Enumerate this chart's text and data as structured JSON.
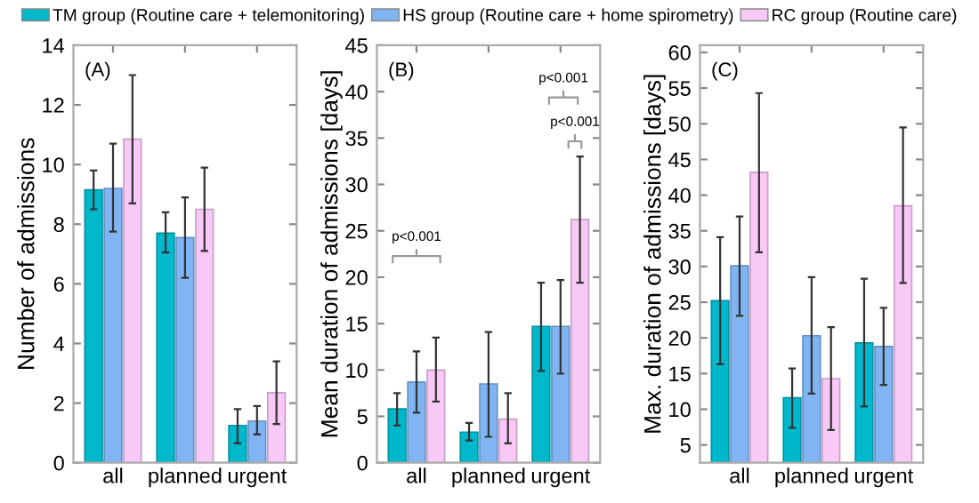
{
  "chart_data": [
    {
      "type": "bar",
      "ylabel": "Number of admissions",
      "categories": [
        "all",
        "planned",
        "urgent"
      ],
      "ylim": [
        0,
        14
      ],
      "yticks": [
        0,
        2,
        4,
        6,
        8,
        10,
        12,
        14
      ],
      "legend": "top",
      "grid": false,
      "annotations": [
        "(A)"
      ],
      "series": [
        {
          "name": "TM group (Routine care + telemonitoring)",
          "color": "#00b8cc",
          "values": [
            9.15,
            7.7,
            1.25
          ],
          "errors": [
            [
              8.5,
              9.8
            ],
            [
              7.05,
              8.4
            ],
            [
              0.65,
              1.8
            ]
          ]
        },
        {
          "name": "HS group (Routine care + home spirometry)",
          "color": "#80b4f2",
          "values": [
            9.2,
            7.55,
            1.4
          ],
          "errors": [
            [
              7.75,
              10.7
            ],
            [
              6.2,
              8.9
            ],
            [
              0.95,
              1.9
            ]
          ]
        },
        {
          "name": "RC group (Routine care)",
          "color": "#f8c8f6",
          "values": [
            10.85,
            8.5,
            2.35
          ],
          "errors": [
            [
              8.7,
              13.0
            ],
            [
              7.1,
              9.9
            ],
            [
              1.3,
              3.4
            ]
          ]
        }
      ]
    },
    {
      "type": "bar",
      "ylabel": "Mean duration of admissions [days]",
      "categories": [
        "all",
        "planned",
        "urgent"
      ],
      "ylim": [
        0,
        45
      ],
      "yticks": [
        0,
        5,
        10,
        15,
        20,
        25,
        30,
        35,
        40,
        45
      ],
      "grid": false,
      "annotations": [
        "(B)",
        "p<0.001",
        "p<0.001",
        "p<0.001"
      ],
      "series": [
        {
          "color": "#00b8cc",
          "values": [
            5.8,
            3.3,
            14.7
          ],
          "errors": [
            [
              4.0,
              7.5
            ],
            [
              2.4,
              4.3
            ],
            [
              9.9,
              19.4
            ]
          ]
        },
        {
          "color": "#80b4f2",
          "values": [
            8.7,
            8.5,
            14.7
          ],
          "errors": [
            [
              5.4,
              12.0
            ],
            [
              2.8,
              14.1
            ],
            [
              9.6,
              19.7
            ]
          ]
        },
        {
          "color": "#f8c8f6",
          "values": [
            10.0,
            4.7,
            26.2
          ],
          "errors": [
            [
              6.6,
              13.5
            ],
            [
              2.1,
              7.5
            ],
            [
              19.4,
              33.0
            ]
          ]
        }
      ]
    },
    {
      "type": "bar",
      "ylabel": "Max. duration of admissions [days]",
      "categories": [
        "all",
        "planned",
        "urgent"
      ],
      "ylim": [
        2.5,
        61
      ],
      "yticks": [
        5,
        10,
        15,
        20,
        25,
        30,
        35,
        40,
        45,
        50,
        55,
        60
      ],
      "grid": false,
      "annotations": [
        "(C)"
      ],
      "series": [
        {
          "color": "#00b8cc",
          "values": [
            25.2,
            11.6,
            19.3
          ],
          "errors": [
            [
              16.3,
              34.1
            ],
            [
              7.4,
              15.7
            ],
            [
              10.4,
              28.3
            ]
          ]
        },
        {
          "color": "#80b4f2",
          "values": [
            30.1,
            20.3,
            18.8
          ],
          "errors": [
            [
              23.1,
              37.0
            ],
            [
              12.2,
              28.5
            ],
            [
              13.4,
              24.2
            ]
          ]
        },
        {
          "color": "#f8c8f6",
          "values": [
            43.2,
            14.3,
            38.5
          ],
          "errors": [
            [
              32.0,
              54.3
            ],
            [
              7.1,
              21.5
            ],
            [
              27.7,
              49.5
            ]
          ]
        }
      ]
    }
  ]
}
